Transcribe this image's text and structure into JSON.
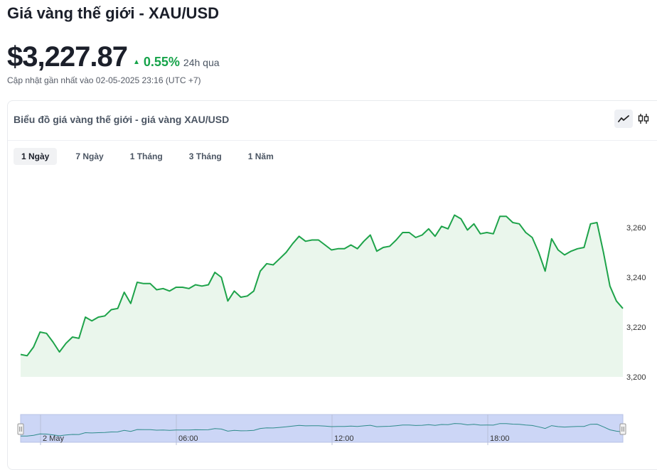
{
  "header": {
    "title": "Giá vàng thế giới - XAU/USD",
    "price": "$3,227.87",
    "change": "0.55%",
    "period": "24h qua",
    "updated": "Cập nhật gần nhất vào 02-05-2025 23:16 (UTC +7)"
  },
  "card": {
    "title": "Biểu đồ giá vàng thế giới - giá vàng XAU/USD",
    "tools": {
      "line": "line-chart-icon",
      "candle": "candlestick-icon"
    },
    "tabs": [
      {
        "label": "1 Ngày",
        "active": true
      },
      {
        "label": "7 Ngày",
        "active": false
      },
      {
        "label": "1 Tháng",
        "active": false
      },
      {
        "label": "3 Tháng",
        "active": false
      },
      {
        "label": "1 Năm",
        "active": false
      }
    ]
  },
  "colors": {
    "line": "#1ea34a",
    "fill": "#eaf6ec",
    "up": "#16a34a",
    "navigator_fill": "#ccd6f6",
    "navigator_line": "#2e8b8b"
  },
  "chart_data": {
    "type": "area",
    "y_ticks": [
      3200,
      3220,
      3240,
      3260
    ],
    "y_tick_labels": [
      "3,200",
      "3,220",
      "3,240",
      "3,260"
    ],
    "ylim": [
      3200,
      3270
    ],
    "navigator_labels": [
      "2 May",
      "06:00",
      "12:00",
      "18:00"
    ],
    "series": [
      {
        "values": [
          3209,
          3208.5,
          3212,
          3218,
          3217.5,
          3214,
          3210,
          3213.5,
          3216,
          3215.5,
          3224,
          3222.5,
          3224,
          3224.5,
          3227,
          3227.5,
          3234,
          3229.5,
          3238,
          3237.5,
          3237.5,
          3235,
          3235.5,
          3234.5,
          3236,
          3236,
          3235.5,
          3237,
          3236.5,
          3237,
          3242,
          3240,
          3230.5,
          3234.5,
          3232,
          3232.5,
          3234.5,
          3242.5,
          3245.5,
          3245,
          3247.5,
          3250,
          3253.5,
          3256.5,
          3254.5,
          3255,
          3255,
          3253,
          3251,
          3251.5,
          3251.5,
          3253,
          3251.5,
          3254.5,
          3257,
          3250.5,
          3252,
          3252.5,
          3255,
          3258,
          3258,
          3256,
          3257,
          3259.5,
          3256.5,
          3260.5,
          3259.5,
          3265,
          3263.5,
          3259,
          3261.5,
          3257.5,
          3258,
          3257.5,
          3264.5,
          3264.5,
          3262,
          3261.5,
          3258,
          3256,
          3250,
          3242.5,
          3255.5,
          3251,
          3249,
          3250.5,
          3251.5,
          3252,
          3261.5,
          3262,
          3250,
          3236.5,
          3230.5,
          3227.5
        ]
      }
    ]
  }
}
